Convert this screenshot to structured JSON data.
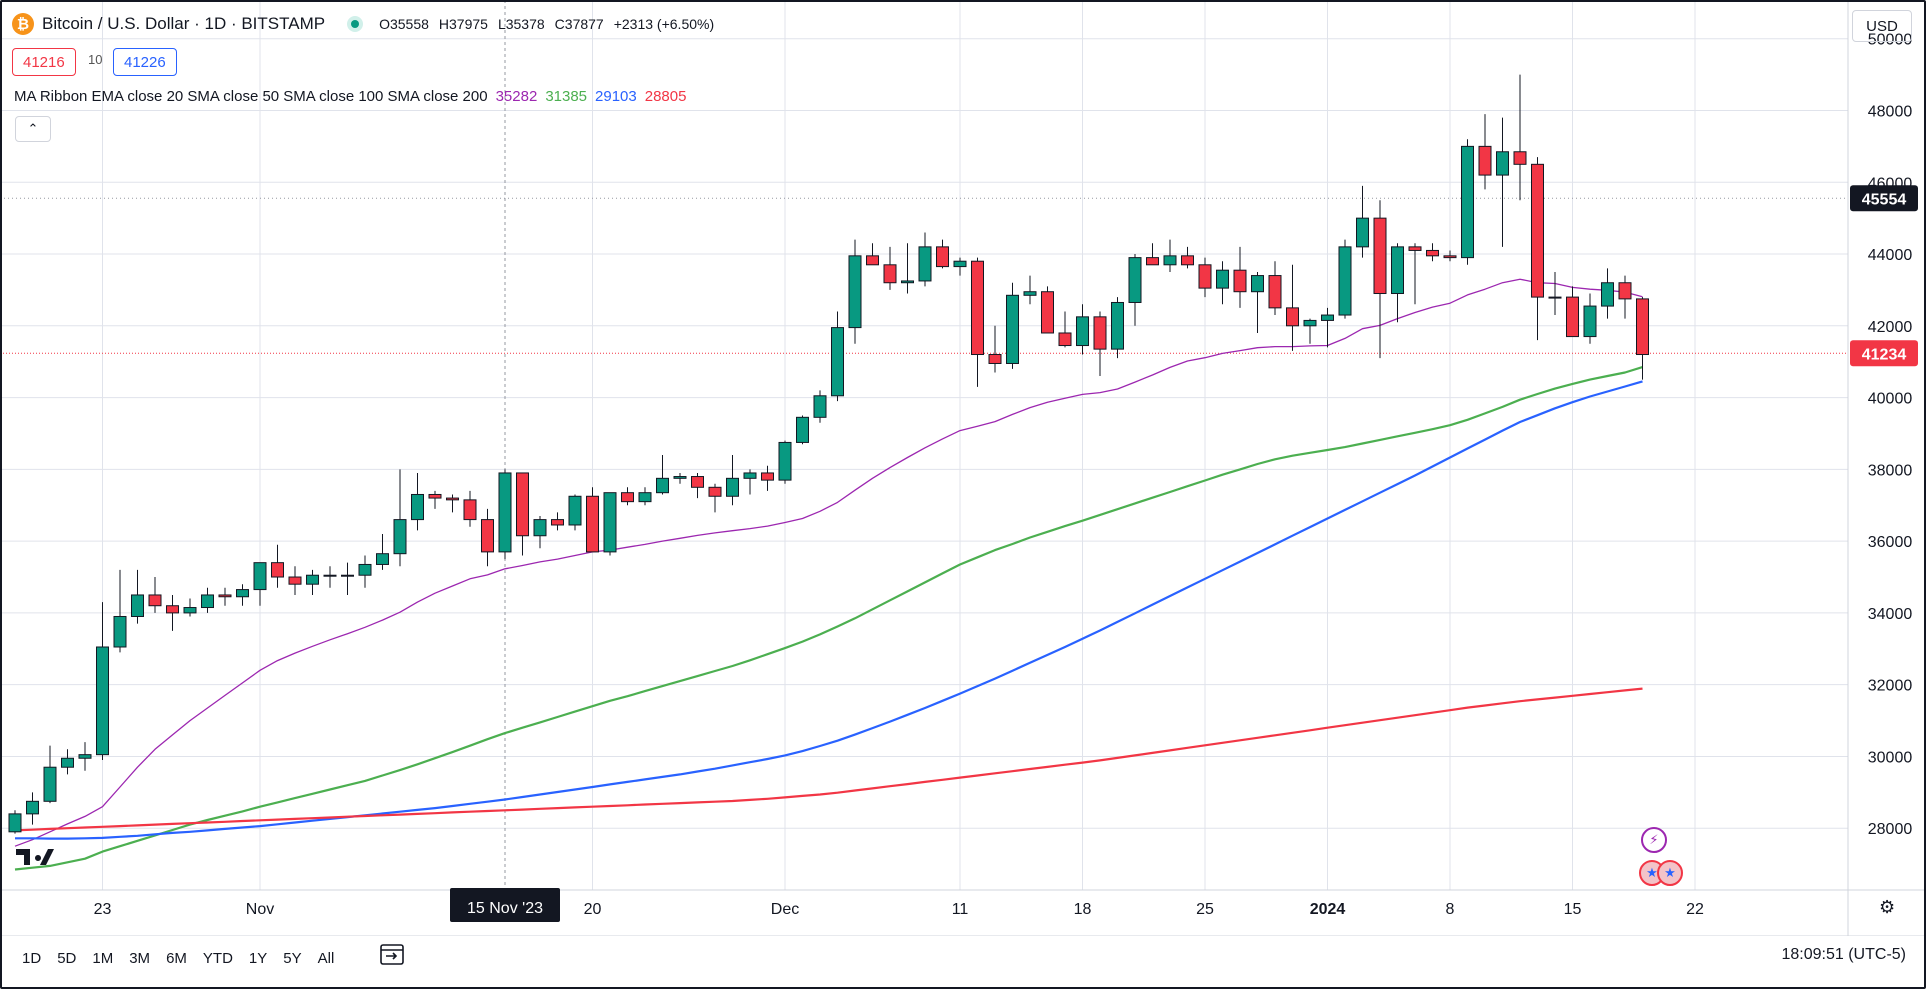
{
  "header": {
    "coin_symbol": "₿",
    "title": "Bitcoin / U.S. Dollar · 1D · BITSTAMP",
    "ohlc": {
      "o": "O35558",
      "h": "H37975",
      "l": "L35378",
      "c": "C37877",
      "chg": "+2313 (+6.50%)"
    },
    "bid": "41216",
    "spread": "10",
    "ask": "41226",
    "currency": "USD"
  },
  "indicator": {
    "label": "MA Ribbon EMA close 20 SMA close 50 SMA close 100 SMA close 200",
    "v1": "35282",
    "v2": "31385",
    "v3": "29103",
    "v4": "28805",
    "c1": "#9c27b0",
    "c2": "#4caf50",
    "c3": "#2962ff",
    "c4": "#f23645"
  },
  "bottom": {
    "ranges": [
      "1D",
      "5D",
      "1M",
      "3M",
      "6M",
      "YTD",
      "1Y",
      "5Y",
      "All"
    ],
    "clock": "18:09:51 (UTC-5)"
  },
  "colors": {
    "up": "#089981",
    "down": "#f23645",
    "grid": "#e0e3eb"
  },
  "chart_data": {
    "type": "candlestick",
    "title": "Bitcoin / U.S. Dollar · 1D · BITSTAMP",
    "y_ticks": [
      28000,
      30000,
      32000,
      34000,
      36000,
      38000,
      40000,
      42000,
      44000,
      46000,
      48000,
      50000
    ],
    "ylim": [
      26000,
      50800
    ],
    "x_ticks": [
      {
        "label": "23",
        "index": 5
      },
      {
        "label": "Nov",
        "index": 14
      },
      {
        "label": "20",
        "index": 33
      },
      {
        "label": "Dec",
        "index": 44
      },
      {
        "label": "11",
        "index": 54
      },
      {
        "label": "18",
        "index": 61
      },
      {
        "label": "25",
        "index": 68
      },
      {
        "label": "2024",
        "index": 75
      },
      {
        "label": "8",
        "index": 82
      },
      {
        "label": "15",
        "index": 89
      },
      {
        "label": "22",
        "index": 96
      }
    ],
    "crosshair": {
      "label": "15 Nov '23",
      "index": 28
    },
    "price_labels": [
      {
        "value": 45554,
        "label": "45554",
        "style": "dark"
      },
      {
        "value": 41234,
        "label": "41234",
        "style": "red"
      }
    ],
    "candles": [
      [
        27900,
        28500,
        27850,
        28400
      ],
      [
        28400,
        29000,
        28100,
        28750
      ],
      [
        28750,
        30300,
        28700,
        29700
      ],
      [
        29700,
        30200,
        29500,
        29950
      ],
      [
        29950,
        30400,
        29600,
        30050
      ],
      [
        30050,
        34300,
        29900,
        33050
      ],
      [
        33050,
        35200,
        32900,
        33900
      ],
      [
        33900,
        35200,
        33700,
        34500
      ],
      [
        34500,
        35000,
        34000,
        34200
      ],
      [
        34200,
        34500,
        33500,
        34000
      ],
      [
        34000,
        34400,
        33900,
        34150
      ],
      [
        34150,
        34700,
        34000,
        34500
      ],
      [
        34500,
        34700,
        34200,
        34450
      ],
      [
        34450,
        34800,
        34200,
        34650
      ],
      [
        34650,
        35400,
        34200,
        35400
      ],
      [
        35400,
        35900,
        34700,
        35000
      ],
      [
        35000,
        35300,
        34500,
        34800
      ],
      [
        34800,
        35200,
        34500,
        35050
      ],
      [
        35050,
        35300,
        34700,
        35050
      ],
      [
        35050,
        35400,
        34500,
        35050
      ],
      [
        35050,
        35600,
        34700,
        35350
      ],
      [
        35350,
        36200,
        35200,
        35650
      ],
      [
        35650,
        38000,
        35300,
        36600
      ],
      [
        36600,
        37900,
        36300,
        37300
      ],
      [
        37300,
        37400,
        36900,
        37200
      ],
      [
        37200,
        37300,
        36800,
        37150
      ],
      [
        37150,
        37400,
        36400,
        36600
      ],
      [
        36600,
        36900,
        35300,
        35700
      ],
      [
        35700,
        38000,
        35500,
        37900
      ],
      [
        37900,
        37900,
        35600,
        36150
      ],
      [
        36150,
        36700,
        35800,
        36600
      ],
      [
        36600,
        36800,
        36300,
        36450
      ],
      [
        36450,
        37300,
        36300,
        37250
      ],
      [
        37250,
        37500,
        35700,
        35700
      ],
      [
        35700,
        37300,
        35600,
        37350
      ],
      [
        37350,
        37500,
        37000,
        37100
      ],
      [
        37100,
        37500,
        37000,
        37350
      ],
      [
        37350,
        38400,
        37300,
        37750
      ],
      [
        37750,
        37900,
        37600,
        37800
      ],
      [
        37800,
        37900,
        37200,
        37500
      ],
      [
        37500,
        37600,
        36800,
        37250
      ],
      [
        37250,
        38400,
        37000,
        37750
      ],
      [
        37750,
        38000,
        37300,
        37900
      ],
      [
        37900,
        38100,
        37400,
        37700
      ],
      [
        37700,
        38800,
        37600,
        38750
      ],
      [
        38750,
        39500,
        38700,
        39450
      ],
      [
        39450,
        40200,
        39300,
        40050
      ],
      [
        40050,
        42400,
        39900,
        41950
      ],
      [
        41950,
        44400,
        41500,
        43950
      ],
      [
        43950,
        44300,
        43700,
        43700
      ],
      [
        43700,
        44200,
        43000,
        43200
      ],
      [
        43200,
        44300,
        42900,
        43250
      ],
      [
        43250,
        44600,
        43100,
        44200
      ],
      [
        44200,
        44400,
        43600,
        43650
      ],
      [
        43650,
        43900,
        43400,
        43800
      ],
      [
        43800,
        43900,
        40300,
        41200
      ],
      [
        41200,
        42000,
        40700,
        40950
      ],
      [
        40950,
        43200,
        40800,
        42850
      ],
      [
        42850,
        43400,
        42600,
        42950
      ],
      [
        42950,
        43100,
        41900,
        41800
      ],
      [
        41800,
        42400,
        41400,
        41450
      ],
      [
        41450,
        42600,
        41200,
        42250
      ],
      [
        42250,
        42400,
        40600,
        41350
      ],
      [
        41350,
        42800,
        41100,
        42650
      ],
      [
        42650,
        44000,
        42000,
        43900
      ],
      [
        43900,
        44300,
        43700,
        43700
      ],
      [
        43700,
        44400,
        43500,
        43950
      ],
      [
        43950,
        44200,
        43600,
        43700
      ],
      [
        43700,
        43900,
        42800,
        43050
      ],
      [
        43050,
        43800,
        42600,
        43550
      ],
      [
        43550,
        44200,
        42500,
        42950
      ],
      [
        42950,
        43500,
        41800,
        43400
      ],
      [
        43400,
        43800,
        42300,
        42500
      ],
      [
        42500,
        43700,
        41300,
        42000
      ],
      [
        42000,
        42200,
        41500,
        42150
      ],
      [
        42150,
        42500,
        41400,
        42300
      ],
      [
        42300,
        44400,
        42200,
        44200
      ],
      [
        44200,
        45900,
        43900,
        45000
      ],
      [
        45000,
        45500,
        41100,
        42900
      ],
      [
        42900,
        44300,
        42100,
        44200
      ],
      [
        44200,
        44300,
        42600,
        44100
      ],
      [
        44100,
        44300,
        43800,
        43950
      ],
      [
        43950,
        44100,
        43800,
        43900
      ],
      [
        43900,
        47200,
        43700,
        47000
      ],
      [
        47000,
        47900,
        45800,
        46200
      ],
      [
        46200,
        47800,
        44200,
        46850
      ],
      [
        46850,
        49000,
        45500,
        46500
      ],
      [
        46500,
        46700,
        41600,
        42800
      ],
      [
        42800,
        43500,
        42300,
        42800
      ],
      [
        42800,
        43100,
        41800,
        41700
      ],
      [
        41700,
        42900,
        41500,
        42550
      ],
      [
        42550,
        43600,
        42200,
        43200
      ],
      [
        43200,
        43400,
        42200,
        42750
      ],
      [
        42750,
        42800,
        40500,
        41200
      ]
    ],
    "series": [
      {
        "name": "EMA close 20",
        "color": "#9c27b0",
        "values": [
          27500,
          27680,
          27900,
          28120,
          28330,
          28600,
          29150,
          29700,
          30200,
          30600,
          31000,
          31350,
          31700,
          32050,
          32400,
          32670,
          32880,
          33070,
          33250,
          33420,
          33600,
          33800,
          34020,
          34300,
          34550,
          34750,
          34950,
          35060,
          35230,
          35320,
          35420,
          35500,
          35600,
          35700,
          35750,
          35830,
          35910,
          36000,
          36080,
          36160,
          36230,
          36290,
          36350,
          36420,
          36520,
          36630,
          36830,
          37080,
          37420,
          37750,
          38050,
          38330,
          38600,
          38850,
          39080,
          39200,
          39330,
          39530,
          39720,
          39870,
          39980,
          40090,
          40140,
          40240,
          40430,
          40630,
          40840,
          41020,
          41110,
          41230,
          41310,
          41390,
          41420,
          41420,
          41440,
          41450,
          41650,
          41920,
          42010,
          42200,
          42370,
          42520,
          42630,
          42860,
          43020,
          43200,
          43300,
          43200,
          43180,
          43070,
          43020,
          42990,
          42940,
          42810
        ]
      },
      {
        "name": "SMA close 50",
        "color": "#4caf50",
        "values": [
          26850,
          26900,
          26950,
          27050,
          27150,
          27350,
          27500,
          27650,
          27800,
          27950,
          28100,
          28230,
          28350,
          28470,
          28600,
          28720,
          28840,
          28960,
          29080,
          29200,
          29320,
          29470,
          29620,
          29780,
          29950,
          30120,
          30300,
          30480,
          30650,
          30800,
          30950,
          31100,
          31250,
          31400,
          31550,
          31680,
          31820,
          31960,
          32100,
          32240,
          32380,
          32520,
          32680,
          32850,
          33020,
          33200,
          33400,
          33620,
          33850,
          34100,
          34350,
          34600,
          34850,
          35100,
          35350,
          35550,
          35750,
          35920,
          36100,
          36260,
          36420,
          36570,
          36730,
          36890,
          37050,
          37210,
          37370,
          37530,
          37690,
          37850,
          38000,
          38150,
          38280,
          38380,
          38460,
          38540,
          38620,
          38720,
          38820,
          38920,
          39020,
          39120,
          39230,
          39380,
          39560,
          39740,
          39940,
          40100,
          40250,
          40380,
          40500,
          40600,
          40700,
          40850
        ]
      },
      {
        "name": "SMA close 100",
        "color": "#2962ff",
        "values": [
          27720,
          27720,
          27710,
          27710,
          27720,
          27730,
          27760,
          27790,
          27830,
          27870,
          27900,
          27940,
          27980,
          28020,
          28060,
          28110,
          28160,
          28210,
          28260,
          28310,
          28360,
          28410,
          28460,
          28510,
          28560,
          28620,
          28680,
          28740,
          28800,
          28870,
          28940,
          29010,
          29080,
          29150,
          29220,
          29290,
          29360,
          29430,
          29500,
          29580,
          29660,
          29750,
          29840,
          29930,
          30030,
          30150,
          30290,
          30440,
          30610,
          30790,
          30970,
          31160,
          31350,
          31550,
          31750,
          31960,
          32170,
          32390,
          32610,
          32830,
          33050,
          33280,
          33510,
          33750,
          33990,
          34230,
          34470,
          34710,
          34950,
          35190,
          35430,
          35670,
          35910,
          36150,
          36390,
          36630,
          36870,
          37110,
          37350,
          37590,
          37830,
          38080,
          38330,
          38580,
          38830,
          39080,
          39320,
          39510,
          39700,
          39870,
          40030,
          40170,
          40310,
          40450
        ]
      },
      {
        "name": "SMA close 200",
        "color": "#f23645",
        "values": [
          27940,
          27960,
          27980,
          28000,
          28020,
          28040,
          28060,
          28080,
          28100,
          28120,
          28140,
          28160,
          28180,
          28200,
          28220,
          28240,
          28260,
          28280,
          28300,
          28320,
          28340,
          28360,
          28380,
          28400,
          28420,
          28440,
          28460,
          28480,
          28500,
          28520,
          28540,
          28560,
          28580,
          28600,
          28620,
          28640,
          28660,
          28680,
          28700,
          28720,
          28740,
          28760,
          28790,
          28820,
          28860,
          28900,
          28940,
          28990,
          29050,
          29110,
          29170,
          29230,
          29290,
          29350,
          29410,
          29470,
          29530,
          29590,
          29650,
          29710,
          29770,
          29830,
          29890,
          29960,
          30030,
          30100,
          30170,
          30240,
          30310,
          30380,
          30450,
          30520,
          30590,
          30660,
          30730,
          30800,
          30870,
          30940,
          31010,
          31080,
          31150,
          31220,
          31290,
          31360,
          31420,
          31480,
          31540,
          31590,
          31640,
          31690,
          31740,
          31790,
          31840,
          31890
        ]
      }
    ]
  }
}
